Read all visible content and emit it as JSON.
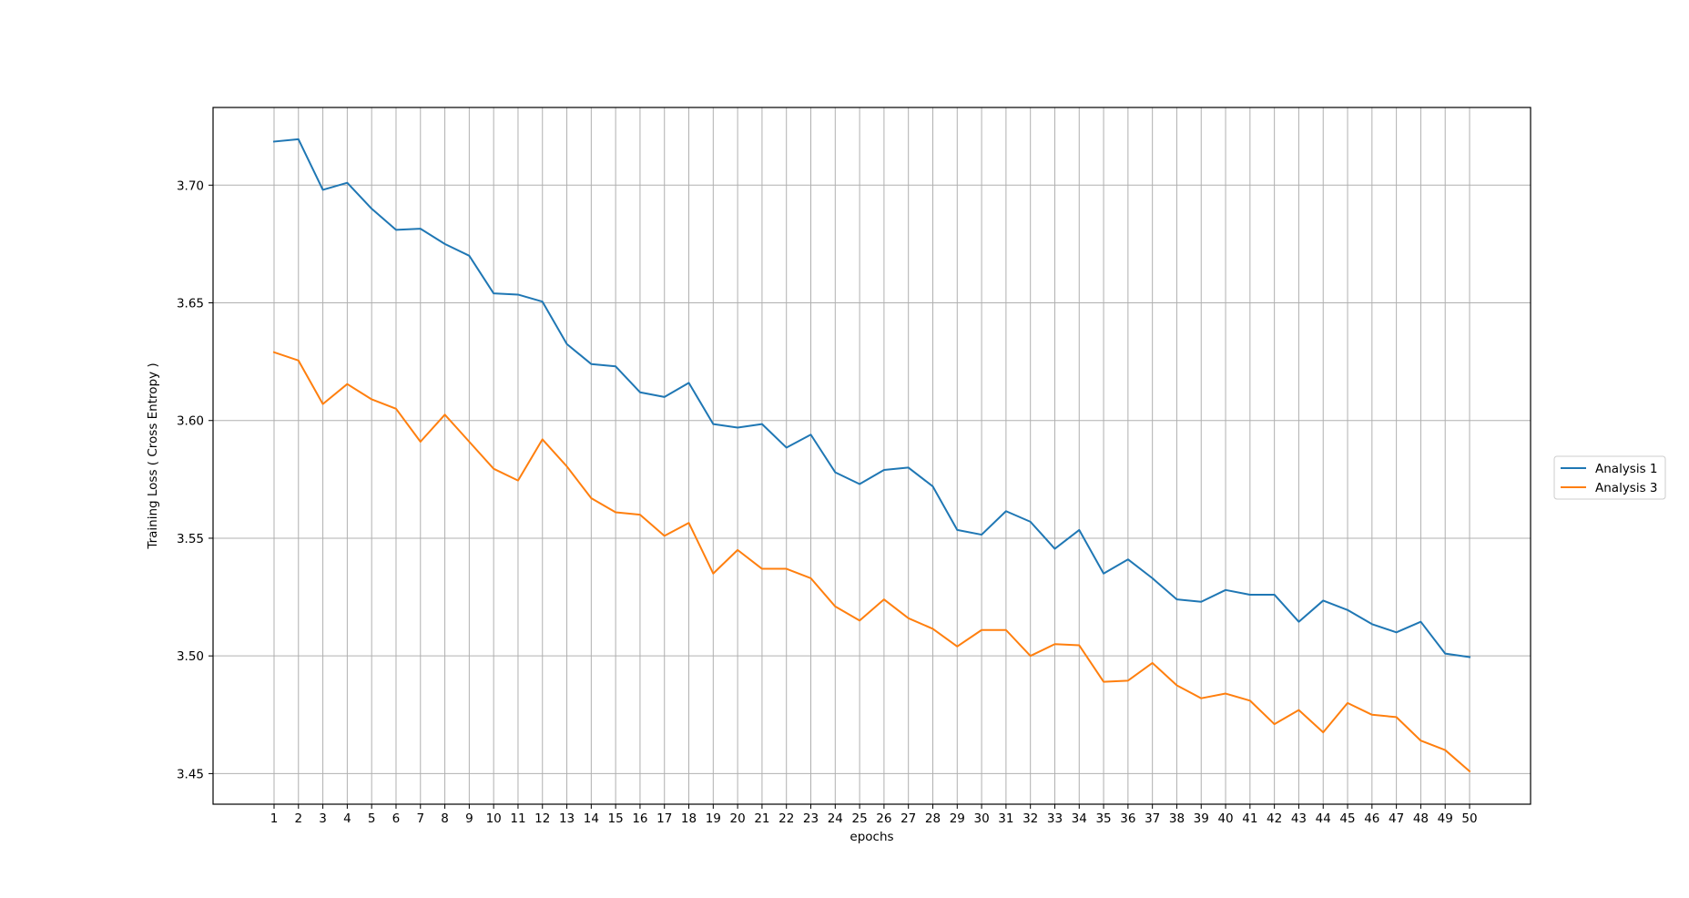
{
  "chart_data": {
    "type": "line",
    "xlabel": "epochs",
    "ylabel": "Training Loss ( Cross Entropy )",
    "x": [
      1,
      2,
      3,
      4,
      5,
      6,
      7,
      8,
      9,
      10,
      11,
      12,
      13,
      14,
      15,
      16,
      17,
      18,
      19,
      20,
      21,
      22,
      23,
      24,
      25,
      26,
      27,
      28,
      29,
      30,
      31,
      32,
      33,
      34,
      35,
      36,
      37,
      38,
      39,
      40,
      41,
      42,
      43,
      44,
      45,
      46,
      47,
      48,
      49,
      50
    ],
    "xlim": [
      -1.5,
      52.5
    ],
    "ylim": [
      3.437,
      3.733
    ],
    "yticks": [
      3.45,
      3.5,
      3.55,
      3.6,
      3.65,
      3.7
    ],
    "ytick_labels": [
      "3.45",
      "3.50",
      "3.55",
      "3.60",
      "3.65",
      "3.70"
    ],
    "grid": true,
    "legend_position": "right, outside plot",
    "series": [
      {
        "name": "Analysis 1",
        "color": "#1f77b4",
        "values": [
          3.7185,
          3.7195,
          3.698,
          3.701,
          3.69,
          3.681,
          3.6815,
          3.675,
          3.67,
          3.654,
          3.6535,
          3.6505,
          3.6325,
          3.624,
          3.623,
          3.612,
          3.61,
          3.616,
          3.5985,
          3.597,
          3.5985,
          3.5885,
          3.594,
          3.578,
          3.573,
          3.579,
          3.58,
          3.572,
          3.5535,
          3.5515,
          3.5615,
          3.557,
          3.5455,
          3.5535,
          3.535,
          3.541,
          3.533,
          3.524,
          3.523,
          3.528,
          3.526,
          3.526,
          3.5145,
          3.5235,
          3.5195,
          3.5135,
          3.51,
          3.5145,
          3.501,
          3.4995
        ]
      },
      {
        "name": "Analysis 3",
        "color": "#ff7f0e",
        "values": [
          3.629,
          3.6255,
          3.607,
          3.6155,
          3.609,
          3.605,
          3.591,
          3.6025,
          3.591,
          3.5795,
          3.5745,
          3.592,
          3.5805,
          3.567,
          3.561,
          3.56,
          3.551,
          3.5565,
          3.535,
          3.545,
          3.537,
          3.537,
          3.533,
          3.521,
          3.515,
          3.524,
          3.516,
          3.5115,
          3.504,
          3.511,
          3.511,
          3.5,
          3.505,
          3.5045,
          3.489,
          3.4895,
          3.497,
          3.4875,
          3.482,
          3.484,
          3.481,
          3.471,
          3.477,
          3.4675,
          3.48,
          3.475,
          3.474,
          3.464,
          3.46,
          3.451
        ]
      }
    ]
  }
}
